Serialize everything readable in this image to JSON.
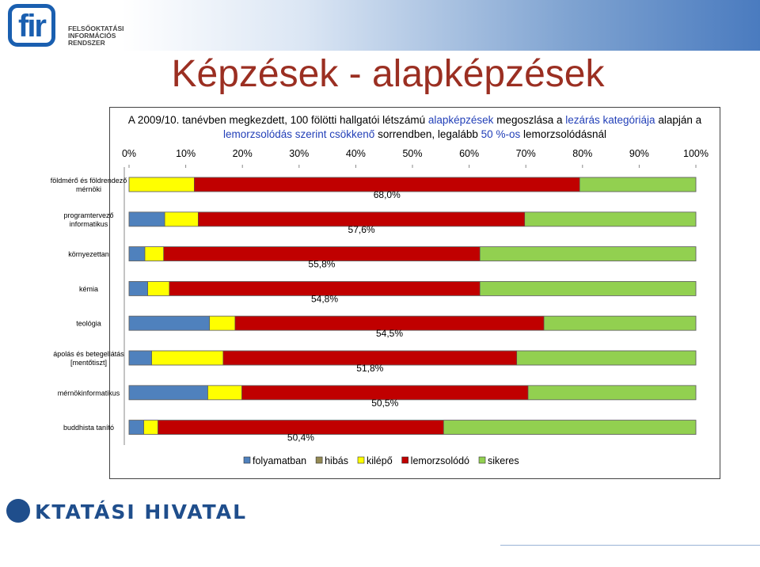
{
  "header": {
    "logo_letters": "fir",
    "logo_lines": [
      "FELSŐOKTATÁSI",
      "INFORMÁCIÓS",
      "RENDSZER"
    ]
  },
  "slide": {
    "title": "Képzések - alapképzések"
  },
  "subtitle_parts": {
    "p1": "A 2009/10. tanévben megkezdett, 100 fölötti hallgatói létszámú ",
    "p2": "alapképzések",
    "p3": " megoszlása a ",
    "p4": "lezárás kategóriája",
    "p5": " alapján a",
    "p6": "lemorzsolódás szerint csökkenő ",
    "p7": "sorrendben, legalább ",
    "p8": "50 %-os",
    "p9": " lemorzsolódásnál"
  },
  "footer": {
    "logo_text": "KTATÁSI HIVATAL"
  },
  "colors": {
    "folyamatban": "#4f81bd",
    "hibás": "#948a54",
    "kilépő": "#ffff00",
    "lemorzsolódó": "#c00000",
    "sikeres": "#92d050",
    "title": "#9b2f22",
    "highlight": "#2340b8"
  },
  "chart_data": {
    "type": "bar",
    "orientation": "horizontal",
    "stacked": "percent",
    "xlim": [
      0,
      100
    ],
    "x_ticks": [
      "0%",
      "10%",
      "20%",
      "30%",
      "40%",
      "50%",
      "60%",
      "70%",
      "80%",
      "90%",
      "100%"
    ],
    "legend_position": "bottom",
    "categories": [
      [
        "földmérő és földrendező",
        "mérnöki"
      ],
      [
        "programtervező",
        "informatikus"
      ],
      [
        "környezettan"
      ],
      [
        "kémia"
      ],
      [
        "teológia"
      ],
      [
        "ápolás és betegellátás",
        "[mentőtiszt]"
      ],
      [
        "mérnökinformatikus"
      ],
      [
        "buddhista tanító"
      ]
    ],
    "series": [
      {
        "name": "folyamatban",
        "values": [
          0.0,
          6.3,
          2.8,
          3.3,
          14.2,
          4.0,
          13.9,
          2.6
        ]
      },
      {
        "name": "hibás",
        "values": [
          0.0,
          0.0,
          0.0,
          0.0,
          0.0,
          0.0,
          0.0,
          0.0
        ]
      },
      {
        "name": "kilépő",
        "values": [
          11.5,
          5.9,
          3.3,
          3.8,
          4.5,
          12.6,
          6.0,
          2.5
        ]
      },
      {
        "name": "lemorzsolódó",
        "values": [
          68.0,
          57.6,
          55.8,
          54.8,
          54.5,
          51.8,
          50.5,
          50.4
        ]
      },
      {
        "name": "sikeres",
        "values": [
          20.5,
          30.2,
          38.1,
          38.1,
          26.8,
          31.6,
          29.6,
          44.5
        ]
      }
    ],
    "data_labels": [
      "68,0%",
      "57,6%",
      "55,8%",
      "54,8%",
      "54,5%",
      "51,8%",
      "50,5%",
      "50,4%"
    ]
  }
}
